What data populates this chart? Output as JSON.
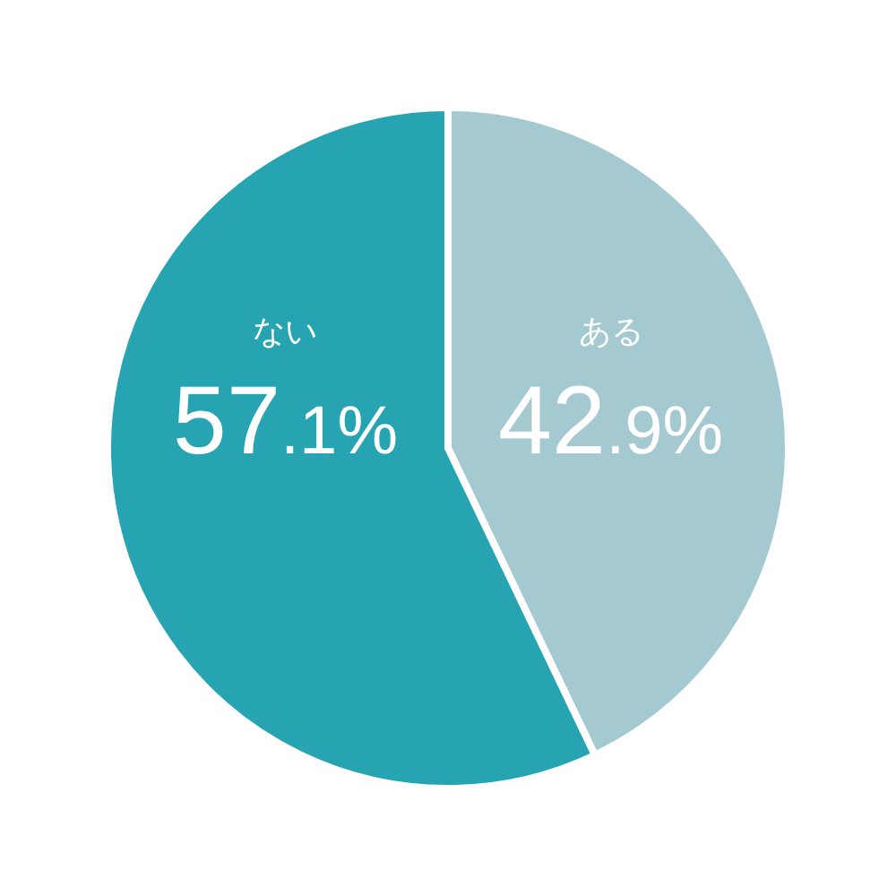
{
  "chart_data": {
    "type": "pie",
    "categories": [
      "ある",
      "ない"
    ],
    "values": [
      42.9,
      57.1
    ],
    "colors": [
      "#a5c9d1",
      "#26a4b1"
    ],
    "value_labels": [
      "42.9%",
      "57.1%"
    ]
  }
}
